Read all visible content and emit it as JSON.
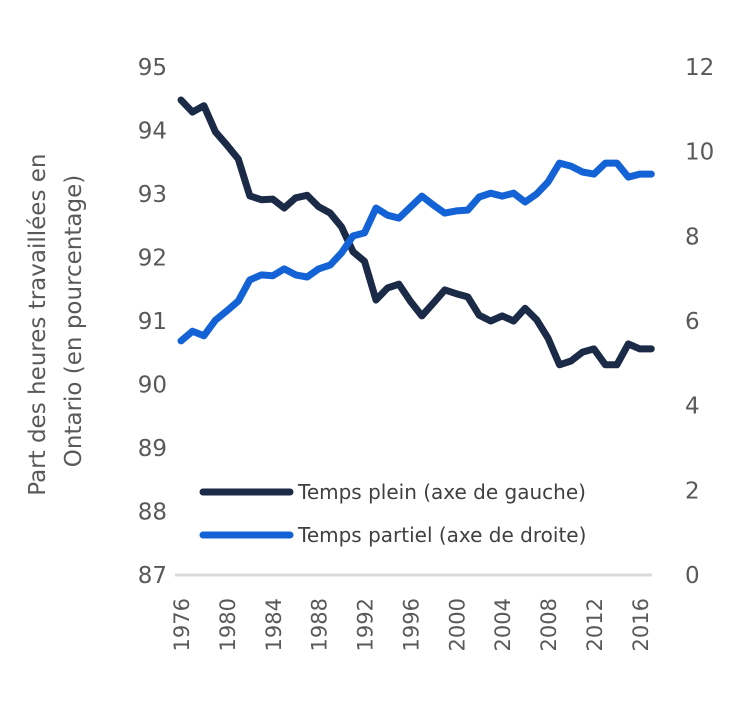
{
  "chart_data": {
    "type": "line",
    "title": "",
    "xlabel": "",
    "ylabel": "Part des heures travaillées en Ontario (en pourcentage)",
    "ylabel_lines": [
      "Part des heures travaillées en",
      "Ontario (en pourcentage)"
    ],
    "x": [
      1976,
      1977,
      1978,
      1979,
      1980,
      1981,
      1982,
      1983,
      1984,
      1985,
      1986,
      1987,
      1988,
      1989,
      1990,
      1991,
      1992,
      1993,
      1994,
      1995,
      1996,
      1997,
      1998,
      1999,
      2000,
      2001,
      2002,
      2003,
      2004,
      2005,
      2006,
      2007,
      2008,
      2009,
      2010,
      2011,
      2012,
      2013,
      2014,
      2015,
      2016,
      2017
    ],
    "x_ticks": [
      "1976",
      "1980",
      "1984",
      "1988",
      "1992",
      "1996",
      "2000",
      "2004",
      "2008",
      "2012",
      "2016"
    ],
    "y_left": {
      "ylim": [
        87,
        95
      ],
      "ticks": [
        "87",
        "88",
        "89",
        "90",
        "91",
        "92",
        "93",
        "94",
        "95"
      ]
    },
    "y_right": {
      "ylim": [
        0,
        12
      ],
      "ticks": [
        "0",
        "2",
        "4",
        "6",
        "8",
        "10",
        "12"
      ]
    },
    "grid": false,
    "legend_position": "bottom-right",
    "series": [
      {
        "name": "Temps plein (axe de gauche)",
        "axis": "left",
        "color": "#1b2a47",
        "values": [
          94.48,
          94.29,
          94.39,
          93.98,
          93.77,
          93.55,
          92.97,
          92.91,
          92.92,
          92.78,
          92.94,
          92.98,
          92.8,
          92.7,
          92.48,
          92.09,
          91.94,
          91.33,
          91.52,
          91.58,
          91.31,
          91.08,
          91.28,
          91.49,
          91.43,
          91.38,
          91.09,
          91.0,
          91.08,
          91.0,
          91.2,
          91.02,
          90.73,
          90.31,
          90.37,
          90.51,
          90.56,
          90.31,
          90.31,
          90.64,
          90.56,
          90.56
        ]
      },
      {
        "name": "Temps partiel (axe de droite)",
        "axis": "right",
        "color": "#1463d6",
        "values": [
          5.53,
          5.76,
          5.65,
          6.02,
          6.24,
          6.47,
          6.97,
          7.09,
          7.07,
          7.23,
          7.09,
          7.04,
          7.23,
          7.32,
          7.61,
          8.01,
          8.08,
          8.67,
          8.5,
          8.43,
          8.69,
          8.95,
          8.74,
          8.55,
          8.6,
          8.62,
          8.93,
          9.02,
          8.95,
          9.02,
          8.81,
          9.0,
          9.28,
          9.73,
          9.66,
          9.52,
          9.47,
          9.73,
          9.73,
          9.4,
          9.47,
          9.47
        ]
      }
    ]
  }
}
